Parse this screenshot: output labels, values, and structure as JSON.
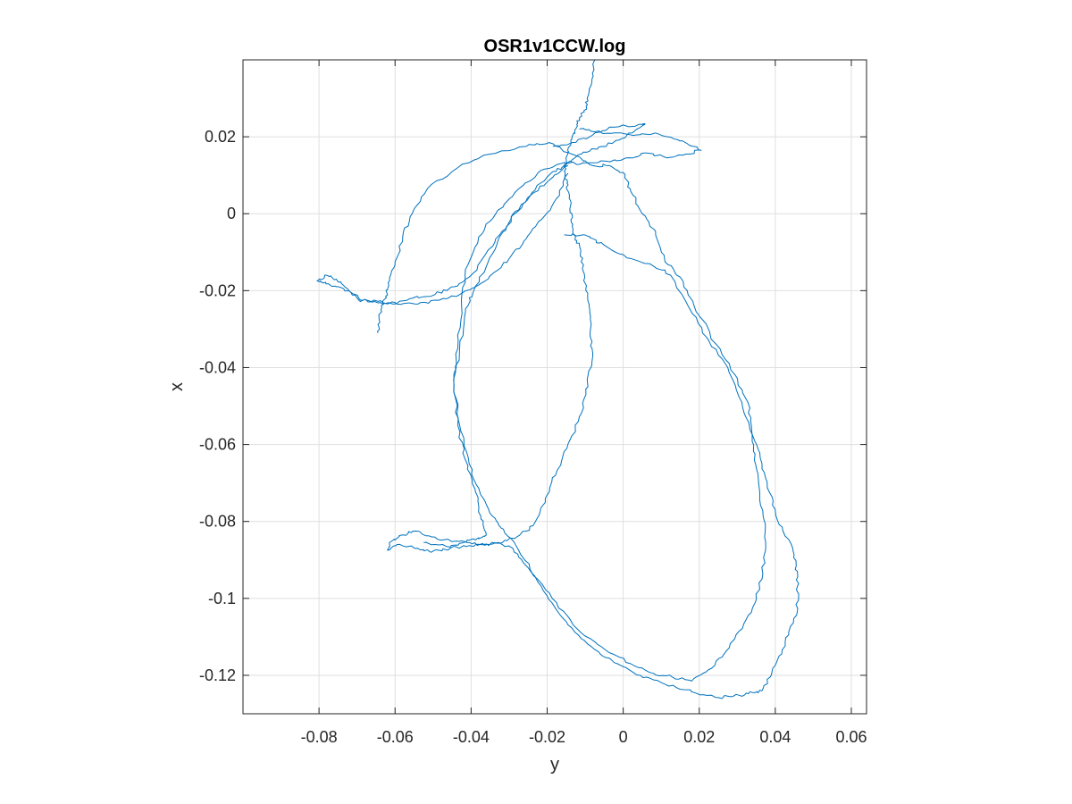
{
  "chart_data": {
    "type": "line",
    "title": "OSR1v1CCW.log",
    "xlabel": "y",
    "ylabel": "x",
    "xlim": [
      -0.1,
      0.064
    ],
    "ylim": [
      -0.13,
      0.04
    ],
    "grid": true,
    "xticks": [
      -0.08,
      -0.06,
      -0.04,
      -0.02,
      0,
      0.02,
      0.04,
      0.06
    ],
    "xtick_labels": [
      "-0.08",
      "-0.06",
      "-0.04",
      "-0.02",
      "0",
      "0.02",
      "0.04",
      "0.06"
    ],
    "yticks": [
      0.02,
      0,
      -0.02,
      -0.04,
      -0.06,
      -0.08,
      -0.1,
      -0.12
    ],
    "ytick_labels": [
      "0.02",
      "0",
      "-0.02",
      "-0.04",
      "-0.06",
      "-0.08",
      "-0.1",
      "-0.12"
    ],
    "line_color": "#0072BD",
    "series": [
      {
        "values_xy": [
          [
            -0.0075,
            0.04
          ],
          [
            -0.0082,
            0.035
          ],
          [
            -0.0095,
            0.03
          ],
          [
            -0.01,
            0.027
          ],
          [
            -0.0115,
            0.025
          ],
          [
            -0.0125,
            0.022
          ],
          [
            -0.0135,
            0.0195
          ],
          [
            -0.0145,
            0.017
          ],
          [
            -0.015,
            0.014
          ],
          [
            -0.0155,
            0.011
          ],
          [
            -0.0148,
            0.008
          ],
          [
            -0.0142,
            0.004
          ],
          [
            -0.0135,
            0.0
          ],
          [
            -0.0132,
            -0.004
          ],
          [
            -0.0122,
            -0.007
          ],
          [
            -0.0112,
            -0.01
          ],
          [
            -0.0105,
            -0.015
          ],
          [
            -0.0098,
            -0.02
          ],
          [
            -0.0088,
            -0.025
          ],
          [
            -0.0086,
            -0.03
          ],
          [
            -0.0082,
            -0.035
          ],
          [
            -0.0085,
            -0.04
          ],
          [
            -0.0098,
            -0.047
          ],
          [
            -0.0118,
            -0.054
          ],
          [
            -0.0148,
            -0.061
          ],
          [
            -0.0178,
            -0.068
          ],
          [
            -0.0205,
            -0.074
          ],
          [
            -0.0225,
            -0.079
          ],
          [
            -0.0255,
            -0.0825
          ],
          [
            -0.0305,
            -0.085
          ],
          [
            -0.0355,
            -0.086
          ],
          [
            -0.0405,
            -0.0863
          ],
          [
            -0.0455,
            -0.087
          ],
          [
            -0.0505,
            -0.088
          ],
          [
            -0.054,
            -0.087
          ],
          [
            -0.0595,
            -0.086
          ],
          [
            -0.062,
            -0.0875
          ],
          [
            -0.0615,
            -0.0855
          ],
          [
            -0.058,
            -0.0835
          ],
          [
            -0.0545,
            -0.0825
          ],
          [
            -0.0505,
            -0.084
          ],
          [
            -0.0455,
            -0.085
          ],
          [
            -0.041,
            -0.0855
          ],
          [
            -0.0365,
            -0.0862
          ],
          [
            -0.033,
            -0.0855
          ],
          [
            -0.029,
            -0.087
          ],
          [
            -0.026,
            -0.091
          ],
          [
            -0.021,
            -0.098
          ],
          [
            -0.016,
            -0.105
          ],
          [
            -0.011,
            -0.1105
          ],
          [
            -0.006,
            -0.1145
          ],
          [
            -0.0015,
            -0.117
          ],
          [
            0.003,
            -0.1195
          ],
          [
            0.008,
            -0.1212
          ],
          [
            0.014,
            -0.1232
          ],
          [
            0.019,
            -0.1246
          ],
          [
            0.025,
            -0.1258
          ],
          [
            0.0305,
            -0.1252
          ],
          [
            0.034,
            -0.1245
          ],
          [
            0.0365,
            -0.124
          ],
          [
            0.039,
            -0.1198
          ],
          [
            0.041,
            -0.115
          ],
          [
            0.0435,
            -0.1095
          ],
          [
            0.0458,
            -0.1035
          ],
          [
            0.0458,
            -0.097
          ],
          [
            0.0455,
            -0.0915
          ],
          [
            0.044,
            -0.0855
          ],
          [
            0.0405,
            -0.0795
          ],
          [
            0.0385,
            -0.0725
          ],
          [
            0.0365,
            -0.065
          ],
          [
            0.034,
            -0.0575
          ],
          [
            0.0312,
            -0.049
          ],
          [
            0.0275,
            -0.04
          ],
          [
            0.0225,
            -0.033
          ],
          [
            0.0182,
            -0.026
          ],
          [
            0.0125,
            -0.016
          ],
          [
            0.007,
            -0.013
          ],
          [
            0.001,
            -0.0115
          ],
          [
            -0.0045,
            -0.0085
          ],
          [
            -0.008,
            -0.0065
          ],
          [
            -0.0105,
            -0.0055
          ],
          [
            -0.0155,
            -0.0055
          ]
        ]
      },
      {
        "values_xy": [
          [
            -0.0115,
            0.022
          ],
          [
            -0.0075,
            0.0213
          ],
          [
            -0.0025,
            0.021
          ],
          [
            0.0035,
            0.0205
          ],
          [
            0.0085,
            0.021
          ],
          [
            0.0145,
            0.0192
          ],
          [
            0.0185,
            0.0175
          ],
          [
            0.0205,
            0.0165
          ],
          [
            0.0165,
            0.0155
          ],
          [
            0.0115,
            0.0145
          ],
          [
            0.0055,
            0.0158
          ],
          [
            0.0025,
            0.0145
          ],
          [
            -0.0035,
            0.0135
          ],
          [
            -0.0105,
            0.0132
          ],
          [
            -0.0165,
            0.013
          ],
          [
            -0.0225,
            0.0105
          ],
          [
            -0.0285,
            0.0055
          ],
          [
            -0.0335,
            0.0
          ],
          [
            -0.038,
            -0.006
          ],
          [
            -0.0415,
            -0.0145
          ],
          [
            -0.0425,
            -0.024
          ],
          [
            -0.0435,
            -0.035
          ],
          [
            -0.0445,
            -0.045
          ],
          [
            -0.043,
            -0.055
          ],
          [
            -0.0405,
            -0.065
          ],
          [
            -0.0375,
            -0.073
          ],
          [
            -0.0345,
            -0.0785
          ],
          [
            -0.0315,
            -0.082
          ],
          [
            -0.0275,
            -0.0875
          ],
          [
            -0.0225,
            -0.095
          ],
          [
            -0.017,
            -0.1025
          ],
          [
            -0.011,
            -0.109
          ],
          [
            -0.0045,
            -0.1135
          ],
          [
            0.002,
            -0.117
          ],
          [
            0.008,
            -0.1195
          ],
          [
            0.013,
            -0.1205
          ],
          [
            0.018,
            -0.1215
          ],
          [
            0.0225,
            -0.1185
          ],
          [
            0.0265,
            -0.1145
          ],
          [
            0.0305,
            -0.1085
          ],
          [
            0.034,
            -0.1025
          ],
          [
            0.0365,
            -0.095
          ],
          [
            0.0375,
            -0.0865
          ],
          [
            0.037,
            -0.0795
          ],
          [
            0.0358,
            -0.0715
          ],
          [
            0.0345,
            -0.064
          ],
          [
            0.0338,
            -0.0565
          ],
          [
            0.0328,
            -0.049
          ],
          [
            0.0295,
            -0.042
          ],
          [
            0.0245,
            -0.034
          ],
          [
            0.0185,
            -0.0235
          ],
          [
            0.015,
            -0.0165
          ],
          [
            0.011,
            -0.0125
          ],
          [
            0.0085,
            -0.0045
          ],
          [
            0.005,
            0.0
          ],
          [
            0.002,
            0.0058
          ],
          [
            0.0005,
            0.0102
          ],
          [
            -0.0035,
            0.0125
          ],
          [
            -0.008,
            0.0125
          ],
          [
            -0.0135,
            0.0155
          ],
          [
            -0.0195,
            0.0185
          ],
          [
            -0.0255,
            0.0175
          ],
          [
            -0.035,
            0.0155
          ],
          [
            -0.0435,
            0.012
          ],
          [
            -0.0515,
            0.0065
          ],
          [
            -0.0555,
            0.0
          ],
          [
            -0.058,
            -0.006
          ],
          [
            -0.06,
            -0.0125
          ],
          [
            -0.0615,
            -0.0175
          ],
          [
            -0.0625,
            -0.0215
          ],
          [
            -0.0635,
            -0.0245
          ],
          [
            -0.0642,
            -0.0275
          ],
          [
            -0.0645,
            -0.031
          ]
        ]
      },
      {
        "values_xy": [
          [
            -0.0185,
            0.0175
          ],
          [
            -0.0135,
            0.0185
          ],
          [
            -0.008,
            0.0205
          ],
          [
            -0.0025,
            0.0225
          ],
          [
            0.0055,
            0.0232
          ],
          [
            0.0055,
            0.0232
          ],
          [
            -0.0005,
            0.0195
          ],
          [
            -0.0055,
            0.0175
          ],
          [
            -0.0105,
            0.016
          ],
          [
            -0.0135,
            0.014
          ],
          [
            -0.0155,
            0.0125
          ],
          [
            -0.019,
            0.0105
          ],
          [
            -0.024,
            0.0055
          ],
          [
            -0.0285,
            0.0
          ],
          [
            -0.0325,
            -0.006
          ],
          [
            -0.0355,
            -0.0125
          ],
          [
            -0.0395,
            -0.0205
          ],
          [
            -0.0415,
            -0.0255
          ],
          [
            -0.043,
            -0.0345
          ],
          [
            -0.0445,
            -0.0445
          ],
          [
            -0.0435,
            -0.055
          ],
          [
            -0.0415,
            -0.064
          ],
          [
            -0.039,
            -0.0715
          ],
          [
            -0.0375,
            -0.0785
          ],
          [
            -0.036,
            -0.0835
          ],
          [
            -0.0385,
            -0.0845
          ],
          [
            -0.042,
            -0.0855
          ],
          [
            -0.0465,
            -0.0865
          ],
          [
            -0.0525,
            -0.0855
          ]
        ]
      },
      {
        "values_xy": [
          [
            -0.0145,
            0.0125
          ],
          [
            -0.0185,
            0.0095
          ],
          [
            -0.0235,
            0.0055
          ],
          [
            -0.0285,
            0.0005
          ],
          [
            -0.0325,
            -0.0055
          ],
          [
            -0.0365,
            -0.011
          ],
          [
            -0.04,
            -0.016
          ],
          [
            -0.0445,
            -0.019
          ],
          [
            -0.0495,
            -0.021
          ],
          [
            -0.0555,
            -0.022
          ],
          [
            -0.0605,
            -0.0235
          ],
          [
            -0.0655,
            -0.0228
          ],
          [
            -0.0695,
            -0.0225
          ],
          [
            -0.0725,
            -0.0195
          ],
          [
            -0.0755,
            -0.017
          ],
          [
            -0.078,
            -0.016
          ],
          [
            -0.0805,
            -0.0175
          ],
          [
            -0.079,
            -0.018
          ],
          [
            -0.0755,
            -0.019
          ],
          [
            -0.0715,
            -0.0205
          ],
          [
            -0.0685,
            -0.0225
          ],
          [
            -0.0645,
            -0.0228
          ],
          [
            -0.0595,
            -0.0235
          ],
          [
            -0.054,
            -0.0235
          ],
          [
            -0.0485,
            -0.0225
          ],
          [
            -0.043,
            -0.021
          ],
          [
            -0.038,
            -0.0185
          ],
          [
            -0.0335,
            -0.015
          ],
          [
            -0.0295,
            -0.011
          ],
          [
            -0.0255,
            -0.0065
          ],
          [
            -0.0215,
            -0.0015
          ],
          [
            -0.0175,
            0.004
          ],
          [
            -0.0145,
            0.0105
          ]
        ]
      }
    ]
  }
}
